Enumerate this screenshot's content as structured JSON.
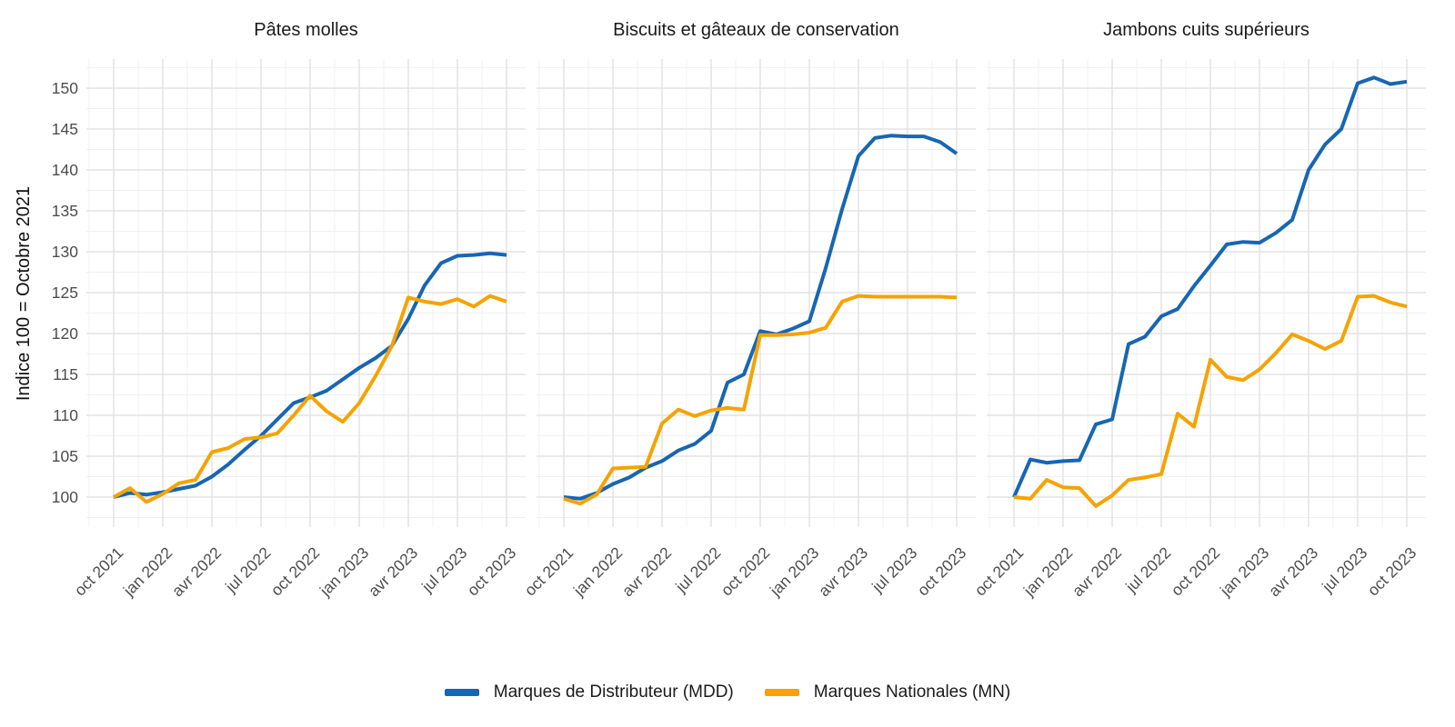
{
  "y_axis": {
    "title": "Indice 100 = Octobre 2021",
    "ticks": [
      100,
      105,
      110,
      115,
      120,
      125,
      130,
      135,
      140,
      145,
      150
    ]
  },
  "x_axis": {
    "tick_labels": [
      "oct 2021",
      "jan 2022",
      "avr 2022",
      "jul 2022",
      "oct 2022",
      "jan 2023",
      "avr 2023",
      "jul 2023",
      "oct 2023"
    ]
  },
  "legend": [
    {
      "label": "Marques de Distributeur (MDD)",
      "color": "#1766B2"
    },
    {
      "label": "Marques Nationales (MN)",
      "color": "#F5A302"
    }
  ],
  "chart_data": {
    "type": "line",
    "x": [
      "oct 2021",
      "nov 2021",
      "déc 2021",
      "jan 2022",
      "fév 2022",
      "mar 2022",
      "avr 2022",
      "mai 2022",
      "jun 2022",
      "jul 2022",
      "aoû 2022",
      "sep 2022",
      "oct 2022",
      "nov 2022",
      "déc 2022",
      "jan 2023",
      "fév 2023",
      "mar 2023",
      "avr 2023",
      "mai 2023",
      "jun 2023",
      "jul 2023",
      "aoû 2023",
      "sep 2023",
      "oct 2023"
    ],
    "x_major_ticks": [
      "oct 2021",
      "jan 2022",
      "avr 2022",
      "jul 2022",
      "oct 2022",
      "jan 2023",
      "avr 2023",
      "jul 2023",
      "oct 2023"
    ],
    "ylabel": "Indice 100 = Octobre 2021",
    "ylim": [
      96.3,
      153.6
    ],
    "yticks": [
      100,
      105,
      110,
      115,
      120,
      125,
      130,
      135,
      140,
      145,
      150
    ],
    "grid": "on",
    "legend_position": "bottom",
    "panels": [
      {
        "title": "Pâtes molles",
        "series": [
          {
            "name": "Marques de Distributeur (MDD)",
            "color": "#1766B2",
            "values": [
              100,
              100.5,
              100.3,
              100.6,
              101,
              101.4,
              102.5,
              104,
              105.8,
              107.5,
              109.5,
              111.5,
              112.2,
              113,
              114.4,
              115.8,
              117,
              118.5,
              121.8,
              125.9,
              128.6,
              129.5,
              129.6,
              129.8,
              129.6
            ]
          },
          {
            "name": "Marques Nationales (MN)",
            "color": "#F5A302",
            "values": [
              100,
              101.1,
              99.4,
              100.4,
              101.7,
              102.1,
              105.5,
              106,
              107.1,
              107.3,
              107.8,
              110,
              112.4,
              110.5,
              109.2,
              111.5,
              114.8,
              118.5,
              124.4,
              123.9,
              123.6,
              124.2,
              123.3,
              124.6,
              123.9
            ]
          }
        ]
      },
      {
        "title": "Biscuits et gâteaux de conservation",
        "series": [
          {
            "name": "Marques de Distributeur (MDD)",
            "color": "#1766B2",
            "values": [
              100,
              99.8,
              100.5,
              101.6,
              102.4,
              103.6,
              104.4,
              105.7,
              106.5,
              108.1,
              114,
              115,
              120.3,
              119.9,
              120.6,
              121.5,
              128,
              135.2,
              141.7,
              143.9,
              144.2,
              144.1,
              144.1,
              143.4,
              142
            ]
          },
          {
            "name": "Marques Nationales (MN)",
            "color": "#F5A302",
            "values": [
              99.8,
              99.2,
              100.3,
              103.5,
              103.6,
              103.7,
              109,
              110.7,
              109.9,
              110.6,
              110.9,
              110.7,
              119.8,
              119.8,
              119.9,
              120.1,
              120.7,
              123.9,
              124.6,
              124.5,
              124.5,
              124.5,
              124.5,
              124.5,
              124.4
            ]
          }
        ]
      },
      {
        "title": "Jambons cuits supérieurs",
        "series": [
          {
            "name": "Marques de Distributeur (MDD)",
            "color": "#1766B2",
            "values": [
              100,
              104.6,
              104.2,
              104.4,
              104.5,
              108.9,
              109.5,
              118.7,
              119.6,
              122.1,
              123,
              125.8,
              128.3,
              130.9,
              131.2,
              131.1,
              132.3,
              133.9,
              140,
              143.1,
              145,
              150.6,
              151.3,
              150.5,
              150.8
            ]
          },
          {
            "name": "Marques Nationales (MN)",
            "color": "#F5A302",
            "values": [
              100,
              99.8,
              102.1,
              101.2,
              101.1,
              98.9,
              100.2,
              102.1,
              102.4,
              102.8,
              110.2,
              108.6,
              116.8,
              114.7,
              114.3,
              115.6,
              117.6,
              119.9,
              119.1,
              118.1,
              119.1,
              124.5,
              124.6,
              123.8,
              123.3
            ]
          }
        ]
      }
    ]
  }
}
